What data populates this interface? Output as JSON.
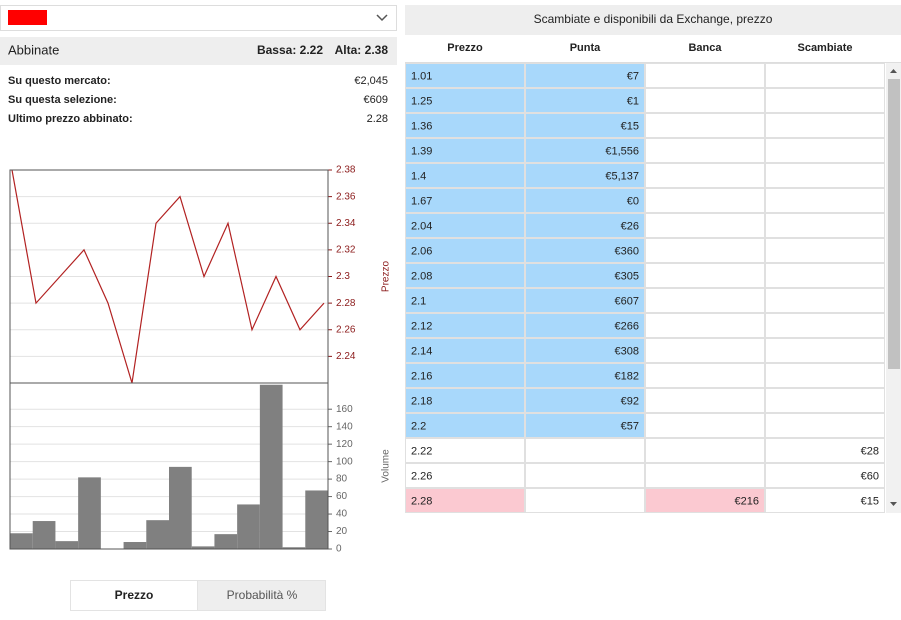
{
  "header": {
    "title": "Abbinate",
    "low": "Bassa: 2.22",
    "high": "Alta: 2.38"
  },
  "stats": [
    {
      "label": "Su questo mercato:",
      "value": "€2,045"
    },
    {
      "label": "Su questa selezione:",
      "value": "€609"
    },
    {
      "label": "Ultimo prezzo abbinato:",
      "value": "2.28"
    }
  ],
  "chart_data": [
    {
      "type": "line",
      "y_label": "Prezzo",
      "color": "#b22222",
      "axis_color": "#8b1a1a",
      "grid": true,
      "values": [
        2.38,
        2.28,
        2.3,
        2.32,
        2.28,
        2.22,
        2.34,
        2.36,
        2.3,
        2.34,
        2.26,
        2.3,
        2.26,
        2.28
      ],
      "ylim": [
        2.22,
        2.38
      ],
      "yticks": [
        2.24,
        2.26,
        2.28,
        2.3,
        2.32,
        2.34,
        2.36,
        2.38
      ]
    },
    {
      "type": "bar",
      "y_label": "Volume",
      "color": "#808080",
      "axis_color": "#666666",
      "grid": true,
      "values": [
        18,
        32,
        9,
        82,
        0,
        8,
        33,
        94,
        3,
        17,
        51,
        188,
        2,
        67
      ],
      "ylim": [
        0,
        190
      ],
      "yticks": [
        0,
        20,
        40,
        60,
        80,
        100,
        120,
        140,
        160
      ]
    }
  ],
  "toggle": [
    "Prezzo",
    "Probabilità %"
  ],
  "table": {
    "title": "Scambiate e disponibili da Exchange, prezzo",
    "columns": [
      "Prezzo",
      "Punta",
      "Banca",
      "Scambiate"
    ],
    "rows": [
      {
        "cells": [
          "1.01",
          "€7",
          null,
          null
        ],
        "colors": [
          "#a8d8fb",
          "#a8d8fb",
          "#ffffff",
          "#ffffff"
        ]
      },
      {
        "cells": [
          "1.25",
          "€1",
          null,
          null
        ],
        "colors": [
          "#a8d8fb",
          "#a8d8fb",
          "#ffffff",
          "#ffffff"
        ]
      },
      {
        "cells": [
          "1.36",
          "€15",
          null,
          null
        ],
        "colors": [
          "#a8d8fb",
          "#a8d8fb",
          "#ffffff",
          "#ffffff"
        ]
      },
      {
        "cells": [
          "1.39",
          "€1,556",
          null,
          null
        ],
        "colors": [
          "#a8d8fb",
          "#a8d8fb",
          "#ffffff",
          "#ffffff"
        ]
      },
      {
        "cells": [
          "1.4",
          "€5,137",
          null,
          null
        ],
        "colors": [
          "#a8d8fb",
          "#a8d8fb",
          "#ffffff",
          "#ffffff"
        ]
      },
      {
        "cells": [
          "1.67",
          "€0",
          null,
          null
        ],
        "colors": [
          "#a8d8fb",
          "#a8d8fb",
          "#ffffff",
          "#ffffff"
        ]
      },
      {
        "cells": [
          "2.04",
          "€26",
          null,
          null
        ],
        "colors": [
          "#a8d8fb",
          "#a8d8fb",
          "#ffffff",
          "#ffffff"
        ]
      },
      {
        "cells": [
          "2.06",
          "€360",
          null,
          null
        ],
        "colors": [
          "#a8d8fb",
          "#a8d8fb",
          "#ffffff",
          "#ffffff"
        ]
      },
      {
        "cells": [
          "2.08",
          "€305",
          null,
          null
        ],
        "colors": [
          "#a8d8fb",
          "#a8d8fb",
          "#ffffff",
          "#ffffff"
        ]
      },
      {
        "cells": [
          "2.1",
          "€607",
          null,
          null
        ],
        "colors": [
          "#a8d8fb",
          "#a8d8fb",
          "#ffffff",
          "#ffffff"
        ]
      },
      {
        "cells": [
          "2.12",
          "€266",
          null,
          null
        ],
        "colors": [
          "#a8d8fb",
          "#a8d8fb",
          "#ffffff",
          "#ffffff"
        ]
      },
      {
        "cells": [
          "2.14",
          "€308",
          null,
          null
        ],
        "colors": [
          "#a8d8fb",
          "#a8d8fb",
          "#ffffff",
          "#ffffff"
        ]
      },
      {
        "cells": [
          "2.16",
          "€182",
          null,
          null
        ],
        "colors": [
          "#a8d8fb",
          "#a8d8fb",
          "#ffffff",
          "#ffffff"
        ]
      },
      {
        "cells": [
          "2.18",
          "€92",
          null,
          null
        ],
        "colors": [
          "#a8d8fb",
          "#a8d8fb",
          "#ffffff",
          "#ffffff"
        ]
      },
      {
        "cells": [
          "2.2",
          "€57",
          null,
          null
        ],
        "colors": [
          "#a8d8fb",
          "#a8d8fb",
          "#ffffff",
          "#ffffff"
        ]
      },
      {
        "cells": [
          "2.22",
          null,
          null,
          "€28"
        ],
        "colors": [
          "#ffffff",
          "#ffffff",
          "#ffffff",
          "#ffffff"
        ]
      },
      {
        "cells": [
          "2.26",
          null,
          null,
          "€60"
        ],
        "colors": [
          "#ffffff",
          "#ffffff",
          "#ffffff",
          "#ffffff"
        ]
      },
      {
        "cells": [
          "2.28",
          null,
          "€216",
          "€15"
        ],
        "colors": [
          "#fbc9d1",
          "#ffffff",
          "#fbc9d1",
          "#ffffff"
        ]
      }
    ]
  }
}
